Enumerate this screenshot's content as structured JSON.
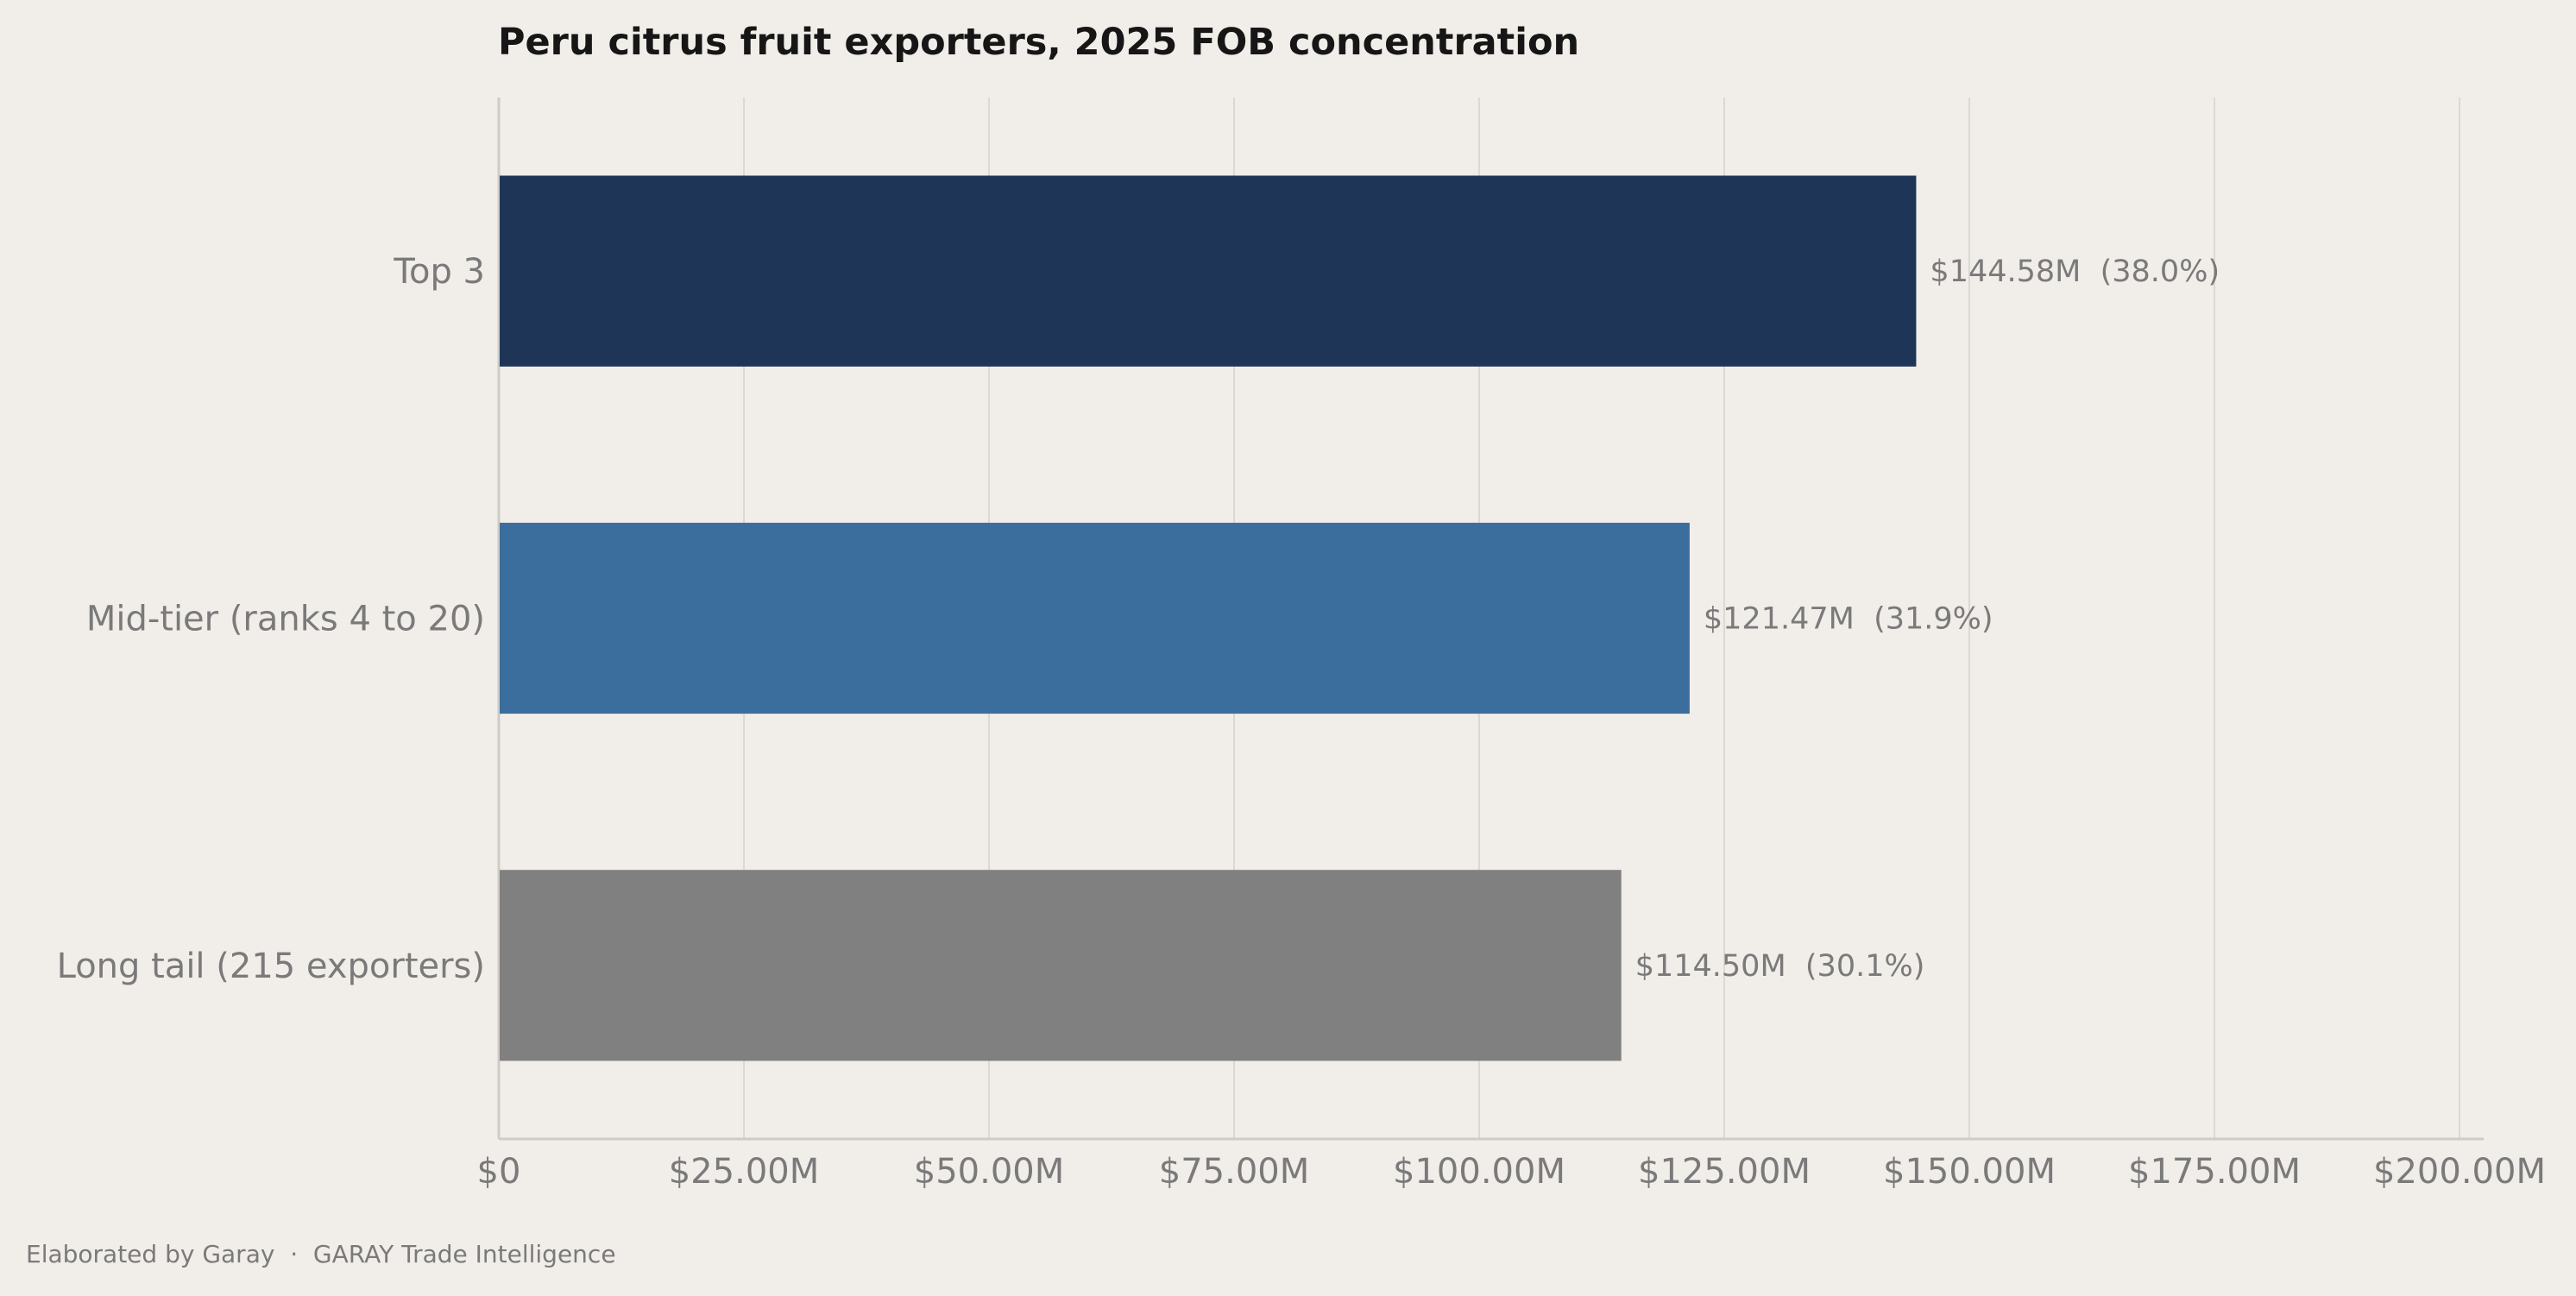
{
  "chart_data": {
    "type": "bar",
    "orientation": "horizontal",
    "title": "Peru citrus fruit exporters, 2025 FOB concentration",
    "xlabel": "",
    "ylabel": "",
    "categories": [
      "Top 3",
      "Mid-tier (ranks 4 to 20)",
      "Long tail (215 exporters)"
    ],
    "values": [
      144.58,
      121.47,
      114.5
    ],
    "value_labels": [
      "$144.58M  (38.0%)",
      "$121.47M  (31.9%)",
      "$114.50M  (30.1%)"
    ],
    "colors": [
      "#1e3558",
      "#3b6e9c",
      "#808080"
    ],
    "xlim": [
      0,
      200
    ],
    "xticks": [
      0,
      25,
      50,
      75,
      100,
      125,
      150,
      175,
      200
    ],
    "xtick_labels": [
      "$0",
      "$25.00M",
      "$50.00M",
      "$75.00M",
      "$100.00M",
      "$125.00M",
      "$150.00M",
      "$175.00M",
      "$200.00M"
    ],
    "grid": true,
    "grid_axis": "x"
  },
  "footer": {
    "credit": "Elaborated by Garay  ·  GARAY Trade Intelligence"
  }
}
